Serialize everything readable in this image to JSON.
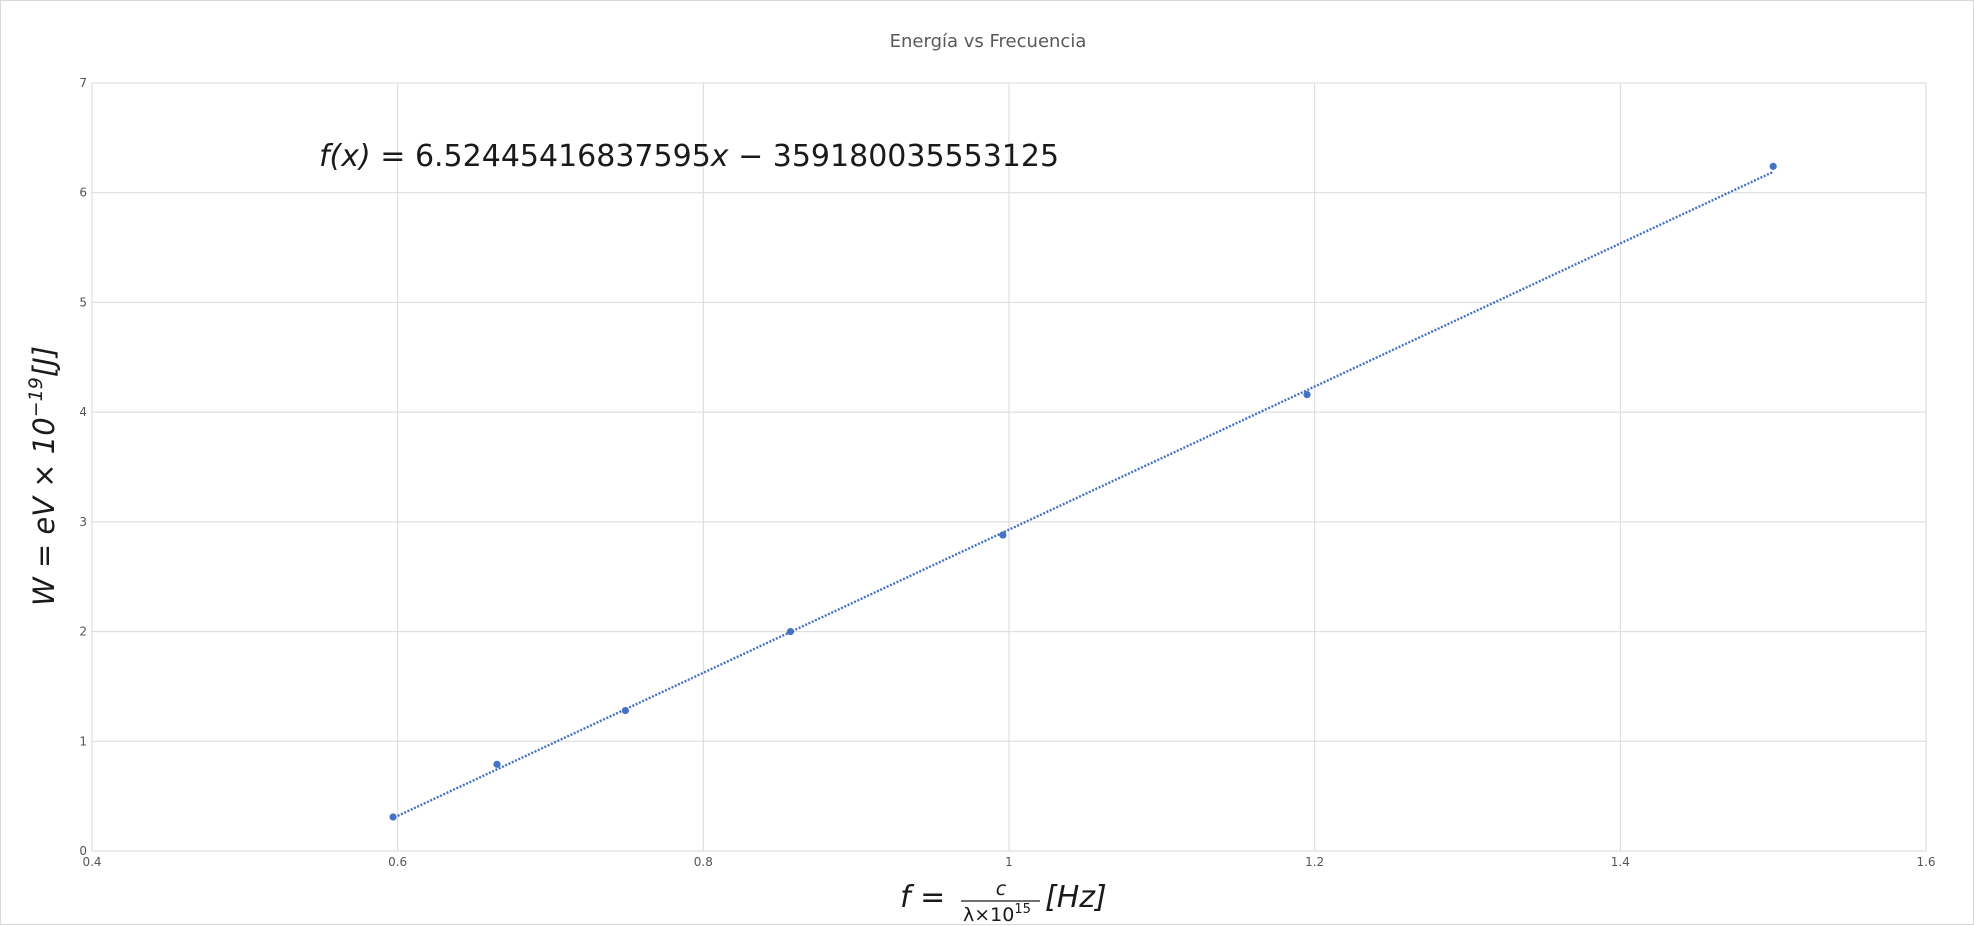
{
  "chart_data": {
    "type": "scatter",
    "title": "Energía vs Frecuencia",
    "xlabel": {
      "prefix": "f = ",
      "numerator": "c",
      "denominator": "λ×10",
      "denominator_exponent": "15",
      "unit": "[Hz]"
    },
    "ylabel": {
      "text": "W = eV × 10",
      "exponent": "−19",
      "unit": "[J]"
    },
    "xlim": [
      0.4,
      1.6
    ],
    "ylim": [
      0,
      7
    ],
    "x_ticks": [
      "0.4",
      "0.6",
      "0.8",
      "1",
      "1.2",
      "1.4",
      "1.6"
    ],
    "y_ticks": [
      "0",
      "1",
      "2",
      "3",
      "4",
      "5",
      "6",
      "7"
    ],
    "grid": true,
    "series": [
      {
        "marker_color": "#4472c4",
        "points": [
          {
            "x": 0.597,
            "y": 0.31
          },
          {
            "x": 0.665,
            "y": 0.79
          },
          {
            "x": 0.749,
            "y": 1.28
          },
          {
            "x": 0.857,
            "y": 2.0
          },
          {
            "x": 0.996,
            "y": 2.88
          },
          {
            "x": 1.195,
            "y": 4.16
          },
          {
            "x": 1.5,
            "y": 6.24
          }
        ]
      }
    ],
    "trendline": {
      "type": "linear",
      "color": "#4472c4",
      "style": "dotted",
      "x_range": [
        0.6,
        1.5
      ],
      "y_range": [
        0.32,
        6.19
      ],
      "equation": {
        "lhs": "f(x) = ",
        "slope": "6.52445416837595",
        "var": "x",
        "rest": " − 359180035553125"
      }
    }
  }
}
